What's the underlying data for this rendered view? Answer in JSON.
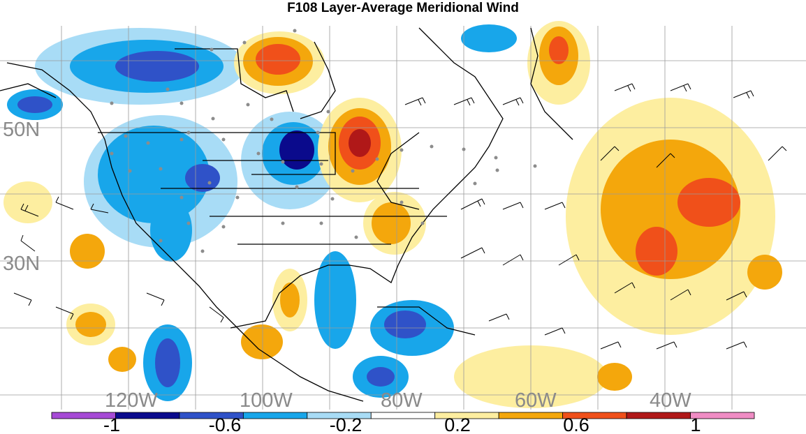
{
  "title": "F108 Layer-Average Meridional Wind",
  "map": {
    "lat_labels": [
      "50N",
      "30N"
    ],
    "lon_labels": [
      "120W",
      "100W",
      "80W",
      "60W",
      "40W"
    ]
  },
  "colorbar": {
    "tick_labels": [
      "-1",
      "-0.6",
      "-0.2",
      "0.2",
      "0.6",
      "1"
    ],
    "colors": [
      "#a64ad6",
      "#0a0a8c",
      "#2f52c8",
      "#18a6ea",
      "#a8dcf6",
      "#ffffff",
      "#fdeea0",
      "#f4a70c",
      "#f0501a",
      "#b01818",
      "#f08cc4"
    ]
  },
  "colors": {
    "grid": "#9a9a9a",
    "coast": "#000000",
    "station_dot": "#8c8c8c",
    "label_gray": "#8a8a8a"
  }
}
